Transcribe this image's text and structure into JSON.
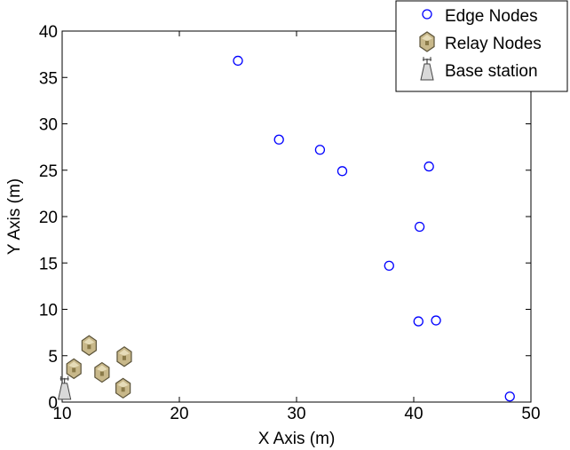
{
  "chart_data": {
    "type": "scatter",
    "xlabel": "X Axis (m)",
    "ylabel": "Y Axis (m)",
    "xlim": [
      10,
      50
    ],
    "ylim": [
      0,
      40
    ],
    "xticks": [
      10,
      20,
      30,
      40,
      50
    ],
    "yticks": [
      0,
      5,
      10,
      15,
      20,
      25,
      30,
      35,
      40
    ],
    "grid": false,
    "legend_position": "top-right",
    "series": [
      {
        "name": "Edge Nodes",
        "marker": "circle",
        "color": "#0000ff",
        "x": [
          25.0,
          28.5,
          32.0,
          33.9,
          37.9,
          40.5,
          41.3,
          40.4,
          41.9,
          48.2
        ],
        "y": [
          36.8,
          28.3,
          27.2,
          24.9,
          14.7,
          18.9,
          25.4,
          8.7,
          8.8,
          0.6
        ]
      },
      {
        "name": "Relay Nodes",
        "marker": "hexagon",
        "color": "#c8b88a",
        "x": [
          12.3,
          11.0,
          13.4,
          15.3,
          15.2
        ],
        "y": [
          6.1,
          3.6,
          3.2,
          4.9,
          1.5
        ]
      },
      {
        "name": "Base station",
        "marker": "tower",
        "color": "#888888",
        "x": [
          10.2
        ],
        "y": [
          0.3
        ]
      }
    ]
  }
}
